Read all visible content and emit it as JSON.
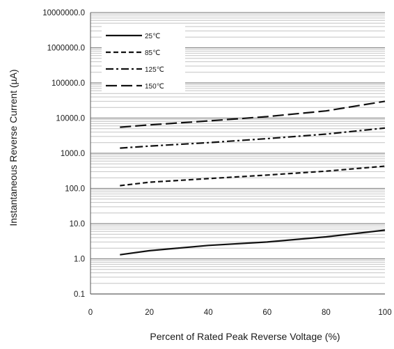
{
  "chart_data": {
    "type": "line",
    "title": "",
    "xlabel": "Percent of  Rated Peak Reverse Voltage (%)",
    "ylabel": "Instantaneous Reverse Current (µA)",
    "xlim": [
      0,
      100
    ],
    "ylim": [
      0.1,
      10000000
    ],
    "yscale": "log",
    "grid": true,
    "legend_position": "top-left",
    "x_ticks": [
      "0",
      "20",
      "40",
      "60",
      "80",
      "100"
    ],
    "y_ticks": [
      "0.1",
      "1.0",
      "10.0",
      "100.0",
      "1000.0",
      "10000.0",
      "100000.0",
      "1000000.0",
      "10000000.0"
    ],
    "series": [
      {
        "name": "25℃",
        "dash": "solid",
        "x": [
          10,
          20,
          40,
          60,
          80,
          100
        ],
        "y": [
          1.3,
          1.7,
          2.4,
          3.0,
          4.2,
          6.5
        ]
      },
      {
        "name": "85℃",
        "dash": "dash",
        "x": [
          10,
          20,
          40,
          60,
          80,
          100
        ],
        "y": [
          120,
          150,
          190,
          240,
          310,
          430
        ]
      },
      {
        "name": "125℃",
        "dash": "dashdot",
        "x": [
          10,
          20,
          40,
          60,
          80,
          100
        ],
        "y": [
          1400,
          1600,
          2000,
          2600,
          3500,
          5200
        ]
      },
      {
        "name": "150℃",
        "dash": "longdash",
        "x": [
          10,
          20,
          40,
          60,
          80,
          100
        ],
        "y": [
          5500,
          6400,
          8300,
          11000,
          16000,
          30000
        ]
      }
    ]
  }
}
